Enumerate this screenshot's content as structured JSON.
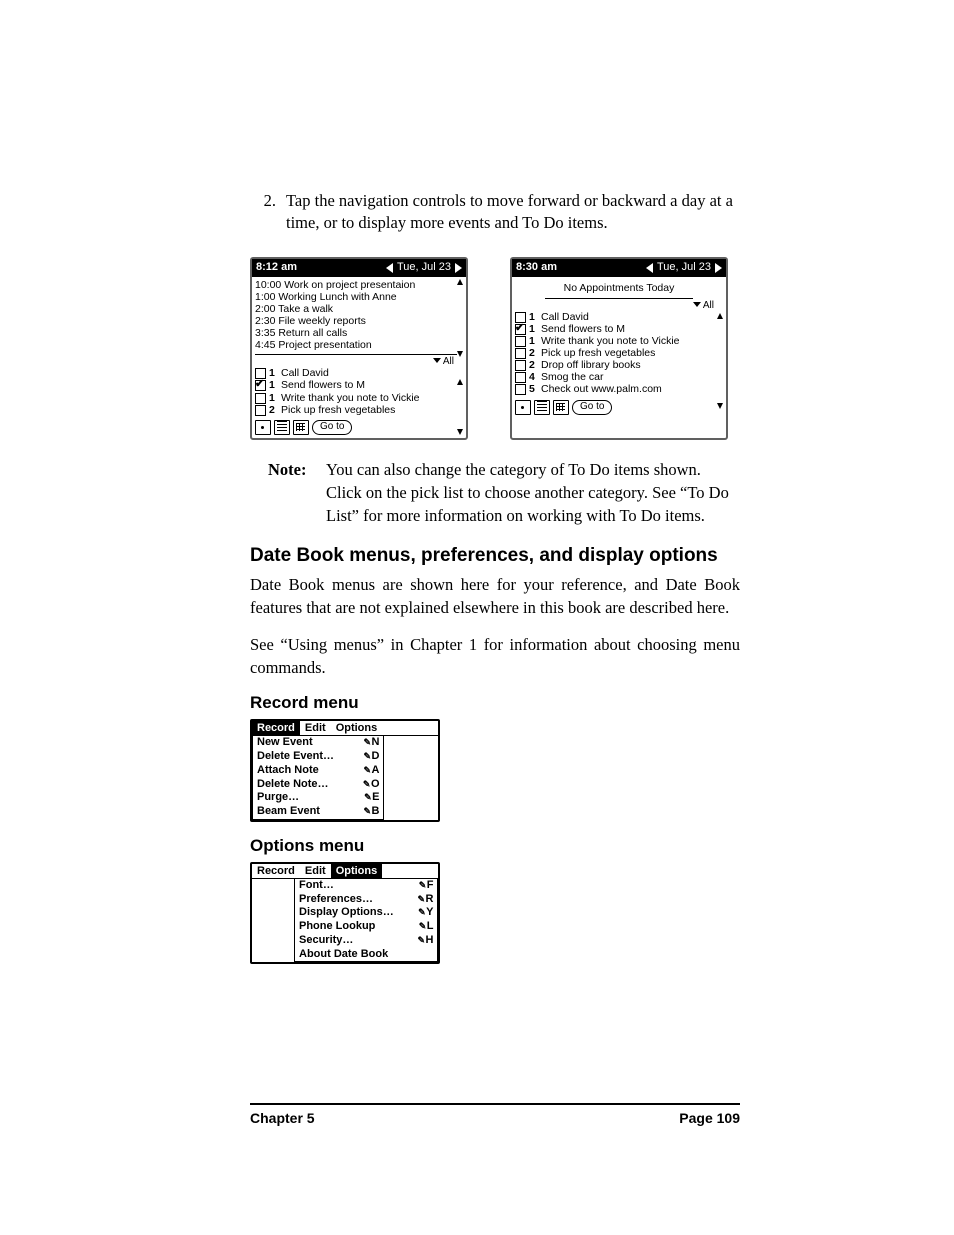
{
  "step": {
    "num": "2.",
    "text": "Tap the navigation controls to move forward or backward a day at a time, or to display more events and To Do items."
  },
  "shotA": {
    "time": "8:12 am",
    "date": "Tue, Jul 23",
    "appts": [
      "10:00 Work on project presentaion",
      "1:00 Working Lunch with Anne",
      "2:00 Take a walk",
      "2:30 File weekly reports",
      "3:35 Return all calls",
      "4:45 Project presentation"
    ],
    "all": "All",
    "todos": [
      {
        "chk": false,
        "pri": "1",
        "text": "Call David"
      },
      {
        "chk": true,
        "pri": "1",
        "text": "Send flowers to M"
      },
      {
        "chk": false,
        "pri": "1",
        "text": "Write thank you note to Vickie"
      },
      {
        "chk": false,
        "pri": "2",
        "text": "Pick up fresh vegetables"
      }
    ],
    "goto": "Go to"
  },
  "shotB": {
    "time": "8:30 am",
    "date": "Tue, Jul 23",
    "no_appt": "No Appointments Today",
    "all": "All",
    "todos": [
      {
        "chk": false,
        "pri": "1",
        "text": "Call David"
      },
      {
        "chk": true,
        "pri": "1",
        "text": "Send flowers to M"
      },
      {
        "chk": false,
        "pri": "1",
        "text": "Write thank you note to Vickie"
      },
      {
        "chk": false,
        "pri": "2",
        "text": "Pick up fresh vegetables"
      },
      {
        "chk": false,
        "pri": "2",
        "text": "Drop off library books"
      },
      {
        "chk": false,
        "pri": "4",
        "text": "Smog the car"
      },
      {
        "chk": false,
        "pri": "5",
        "text": "Check out www.palm.com"
      }
    ],
    "goto": "Go to"
  },
  "note": {
    "label": "Note:",
    "body": "You can also change the category of To Do items shown. Click on the pick list to choose another category.  See “To Do List” for more information on working with To Do items."
  },
  "h_main": "Date Book menus, preferences, and display options",
  "p1": "Date Book menus are shown here for your reference, and Date Book features that are not explained elsewhere in this book are described here.",
  "p2": "See “Using menus” in Chapter 1 for information about choosing menu commands.",
  "h_rec": "Record menu",
  "rec_menu": {
    "tabs": [
      "Record",
      "Edit",
      "Options"
    ],
    "sel": 0,
    "items": [
      {
        "l": "New Event",
        "s": "N"
      },
      {
        "l": "Delete Event…",
        "s": "D"
      },
      {
        "l": "Attach Note",
        "s": "A"
      },
      {
        "l": "Delete Note…",
        "s": "O"
      },
      {
        "l": "Purge…",
        "s": "E"
      },
      {
        "l": "Beam Event",
        "s": "B"
      }
    ]
  },
  "h_opt": "Options menu",
  "opt_menu": {
    "tabs": [
      "Record",
      "Edit",
      "Options"
    ],
    "sel": 2,
    "items": [
      {
        "l": "Font…",
        "s": "F"
      },
      {
        "l": "Preferences…",
        "s": "R"
      },
      {
        "l": "Display Options…",
        "s": "Y"
      },
      {
        "l": "Phone Lookup",
        "s": "L"
      },
      {
        "l": "Security…",
        "s": "H"
      },
      {
        "l": "About Date Book",
        "s": ""
      }
    ]
  },
  "footer": {
    "left": "Chapter 5",
    "right": "Page 109"
  }
}
